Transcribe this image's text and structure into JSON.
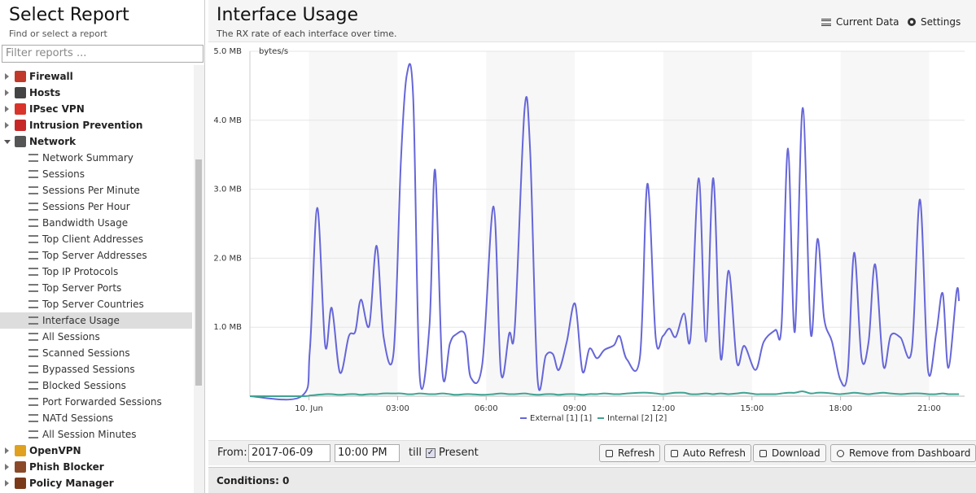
{
  "sidebar": {
    "title": "Select Report",
    "subtitle": "Find or select a report",
    "filter_placeholder": "Filter reports ...",
    "tree": [
      {
        "label": "Firewall"
      },
      {
        "label": "Hosts"
      },
      {
        "label": "IPsec VPN"
      },
      {
        "label": "Intrusion Prevention"
      },
      {
        "label": "Network",
        "children": [
          "Network Summary",
          "Sessions",
          "Sessions Per Minute",
          "Sessions Per Hour",
          "Bandwidth Usage",
          "Top Client Addresses",
          "Top Server Addresses",
          "Top IP Protocols",
          "Top Server Ports",
          "Top Server Countries",
          "Interface Usage",
          "All Sessions",
          "Scanned Sessions",
          "Bypassed Sessions",
          "Blocked Sessions",
          "Port Forwarded Sessions",
          "NATd Sessions",
          "All Session Minutes"
        ]
      },
      {
        "label": "OpenVPN"
      },
      {
        "label": "Phish Blocker"
      },
      {
        "label": "Policy Manager"
      }
    ]
  },
  "header": {
    "title": "Interface Usage",
    "subtitle": "The RX rate of each interface over time.",
    "buttons": [
      "Current Data",
      "Settings"
    ]
  },
  "toolbar": {
    "from_label": "From:",
    "date": "2017-06-09",
    "time": "10:00 PM",
    "till_label": "till",
    "present_label": "Present",
    "buttons": [
      "Refresh",
      "Auto Refresh",
      "Download",
      "Remove from Dashboard"
    ]
  },
  "conditions": "Conditions: 0",
  "chart_data": {
    "type": "line",
    "ylabel": "bytes/s",
    "grid": true,
    "xlim": [
      -2,
      22.2
    ],
    "ylim": [
      0,
      5
    ],
    "xticks": [
      {
        "value": 0,
        "label": "10. Jun"
      },
      {
        "value": 3,
        "label": "03:00"
      },
      {
        "value": 6,
        "label": "06:00"
      },
      {
        "value": 9,
        "label": "09:00"
      },
      {
        "value": 12,
        "label": "12:00"
      },
      {
        "value": 15,
        "label": "15:00"
      },
      {
        "value": 18,
        "label": "18:00"
      },
      {
        "value": 21,
        "label": "21:00"
      }
    ],
    "yticks": [
      {
        "value": 1,
        "label": "1.0 MB"
      },
      {
        "value": 2,
        "label": "2.0 MB"
      },
      {
        "value": 3,
        "label": "3.0 MB"
      },
      {
        "value": 4,
        "label": "4.0 MB"
      },
      {
        "value": 5,
        "label": "5.0 MB"
      }
    ],
    "x": [
      -2,
      -0.25,
      0.03,
      0.28,
      0.55,
      0.77,
      1.05,
      1.35,
      1.57,
      1.76,
      2.04,
      2.29,
      2.53,
      2.87,
      3.11,
      3.31,
      3.53,
      3.75,
      4.08,
      4.27,
      4.52,
      4.77,
      4.96,
      5.29,
      5.48,
      5.87,
      6.25,
      6.5,
      6.78,
      6.97,
      7.3,
      7.49,
      7.74,
      8.02,
      8.26,
      8.46,
      8.73,
      9.01,
      9.26,
      9.5,
      9.75,
      10.0,
      10.33,
      10.52,
      10.77,
      11.21,
      11.46,
      11.74,
      11.98,
      12.2,
      12.42,
      12.7,
      12.92,
      13.2,
      13.44,
      13.69,
      13.94,
      14.21,
      14.49,
      14.74,
      15.12,
      15.4,
      15.79,
      16.0,
      16.22,
      16.45,
      16.72,
      16.99,
      17.22,
      17.44,
      17.71,
      17.99,
      18.24,
      18.46,
      18.71,
      18.95,
      19.17,
      19.45,
      19.7,
      20.03,
      20.41,
      20.69,
      20.96,
      21.24,
      21.46,
      21.65,
      21.93,
      22.01
    ],
    "series": [
      {
        "name": "External [1] [1]",
        "color": "#6666d9",
        "values": [
          0,
          0,
          0.67,
          2.73,
          0.73,
          1.28,
          0.34,
          0.87,
          0.94,
          1.4,
          1.02,
          2.18,
          0.85,
          0.65,
          3.38,
          4.65,
          4.32,
          0.29,
          1.02,
          3.28,
          0.34,
          0.76,
          0.89,
          0.89,
          0.27,
          0.47,
          2.75,
          0.34,
          0.91,
          1.0,
          4.16,
          3.55,
          0.25,
          0.59,
          0.61,
          0.38,
          0.79,
          1.34,
          0.36,
          0.69,
          0.55,
          0.67,
          0.74,
          0.87,
          0.53,
          0.58,
          3.08,
          0.85,
          0.87,
          0.98,
          0.86,
          1.2,
          0.85,
          3.16,
          0.79,
          3.16,
          0.55,
          1.82,
          0.49,
          0.73,
          0.38,
          0.79,
          0.96,
          1.02,
          3.59,
          0.93,
          4.18,
          0.91,
          2.28,
          1.14,
          0.79,
          0.24,
          0.34,
          2.08,
          0.55,
          0.79,
          1.91,
          0.44,
          0.88,
          0.85,
          0.67,
          2.85,
          0.38,
          0.91,
          1.49,
          0.41,
          1.52,
          1.38
        ]
      },
      {
        "name": "Internal [2] [2]",
        "color": "#3fa393",
        "values": [
          0,
          0,
          0.01,
          0.02,
          0.03,
          0.03,
          0.02,
          0.03,
          0.03,
          0.02,
          0.03,
          0.03,
          0.04,
          0.04,
          0.04,
          0.03,
          0.03,
          0.04,
          0.03,
          0.03,
          0.04,
          0.03,
          0.02,
          0.03,
          0.03,
          0.02,
          0.03,
          0.04,
          0.03,
          0.03,
          0.04,
          0.03,
          0.02,
          0.03,
          0.03,
          0.02,
          0.03,
          0.03,
          0.02,
          0.03,
          0.03,
          0.04,
          0.03,
          0.03,
          0.04,
          0.05,
          0.05,
          0.04,
          0.03,
          0.04,
          0.05,
          0.05,
          0.03,
          0.03,
          0.04,
          0.03,
          0.04,
          0.03,
          0.04,
          0.05,
          0.03,
          0.03,
          0.03,
          0.04,
          0.05,
          0.05,
          0.07,
          0.04,
          0.05,
          0.05,
          0.04,
          0.03,
          0.04,
          0.05,
          0.04,
          0.03,
          0.04,
          0.05,
          0.04,
          0.03,
          0.04,
          0.04,
          0.03,
          0.03,
          0.04,
          0.03,
          0.03,
          0.03
        ]
      }
    ]
  }
}
